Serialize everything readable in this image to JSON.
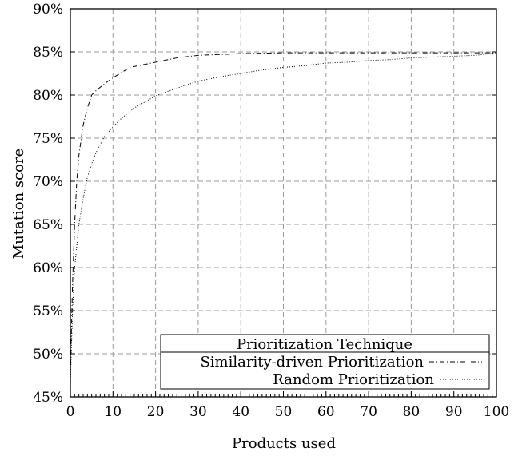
{
  "chart_data": {
    "type": "line",
    "xlabel": "Products used",
    "ylabel": "Mutation score",
    "xlim": [
      0,
      100
    ],
    "ylim": [
      45,
      90
    ],
    "x_ticks": [
      0,
      10,
      20,
      30,
      40,
      50,
      60,
      70,
      80,
      90,
      100
    ],
    "y_ticks": [
      45,
      50,
      55,
      60,
      65,
      70,
      75,
      80,
      85,
      90
    ],
    "y_tick_labels": [
      "45%",
      "50%",
      "55%",
      "60%",
      "65%",
      "70%",
      "75%",
      "80%",
      "85%",
      "90%"
    ],
    "grid": true,
    "legend": {
      "title": "Prioritization Technique",
      "placement": "bottom-right"
    },
    "series": [
      {
        "name": "Similarity-driven Prioritization",
        "style": "dash-dot",
        "x": [
          0,
          0.5,
          1,
          1.5,
          2,
          3,
          4,
          5,
          6,
          8,
          10,
          12,
          14,
          16,
          18,
          20,
          22,
          25,
          30,
          35,
          40,
          50,
          60,
          70,
          80,
          90,
          100
        ],
        "y": [
          47.5,
          58,
          65,
          70,
          73,
          76.5,
          78.5,
          80,
          80.5,
          81.3,
          82,
          82.6,
          83.2,
          83.4,
          83.6,
          83.8,
          84.0,
          84.3,
          84.6,
          84.7,
          84.8,
          84.9,
          84.9,
          84.9,
          84.9,
          84.9,
          84.9
        ]
      },
      {
        "name": "Random Prioritization",
        "style": "dotted",
        "x": [
          0,
          0.5,
          1,
          2,
          3,
          4,
          5,
          6,
          8,
          10,
          12,
          15,
          20,
          25,
          30,
          35,
          40,
          45,
          50,
          55,
          60,
          65,
          70,
          75,
          80,
          85,
          90,
          95,
          100
        ],
        "y": [
          46.5,
          55,
          60,
          65,
          68,
          70.5,
          72,
          73.3,
          75.2,
          76.3,
          77.3,
          78.5,
          79.9,
          80.8,
          81.6,
          82.1,
          82.5,
          82.9,
          83.2,
          83.4,
          83.7,
          83.8,
          84.0,
          84.1,
          84.3,
          84.4,
          84.5,
          84.6,
          84.9
        ]
      }
    ]
  }
}
